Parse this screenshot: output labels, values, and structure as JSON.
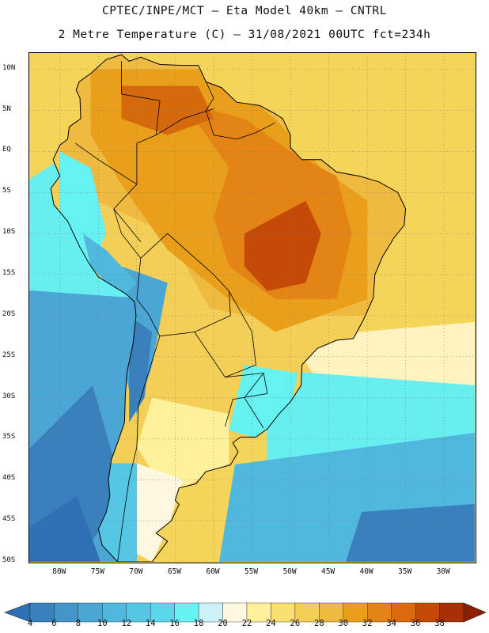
{
  "header": {
    "line1": "CPTEC/INPE/MCT —  Eta Model 40km — CNTRL",
    "line2": "2 Metre Temperature (C) — 31/08/2021 00UTC fct=234h"
  },
  "map": {
    "projection": "lat-lon",
    "lon_range": [
      -84,
      -26
    ],
    "lat_range": [
      -50,
      12
    ],
    "lat_ticks": [
      "10N",
      "5N",
      "EQ",
      "5S",
      "10S",
      "15S",
      "20S",
      "25S",
      "30S",
      "35S",
      "40S",
      "45S",
      "50S"
    ],
    "lon_ticks": [
      "80W",
      "75W",
      "70W",
      "65W",
      "60W",
      "55W",
      "50W",
      "45W",
      "40W",
      "35W",
      "30W"
    ],
    "grid": "dotted"
  },
  "colorbar": {
    "labels": [
      "4",
      "6",
      "8",
      "10",
      "12",
      "14",
      "16",
      "18",
      "20",
      "22",
      "24",
      "26",
      "28",
      "30",
      "32",
      "34",
      "36",
      "38"
    ],
    "colors": [
      "#2f6fb4",
      "#3a80bd",
      "#4394c8",
      "#4ba6d4",
      "#50b7dd",
      "#55c6e4",
      "#5ad8ea",
      "#66f2f2",
      "#ccf2f8",
      "#fff8e0",
      "#fff09a",
      "#f9e070",
      "#f4cf58",
      "#eebb40",
      "#ea9f1a",
      "#e38414",
      "#da6a0d",
      "#c54a08",
      "#a83006",
      "#8c2006"
    ],
    "extend": "both"
  }
}
